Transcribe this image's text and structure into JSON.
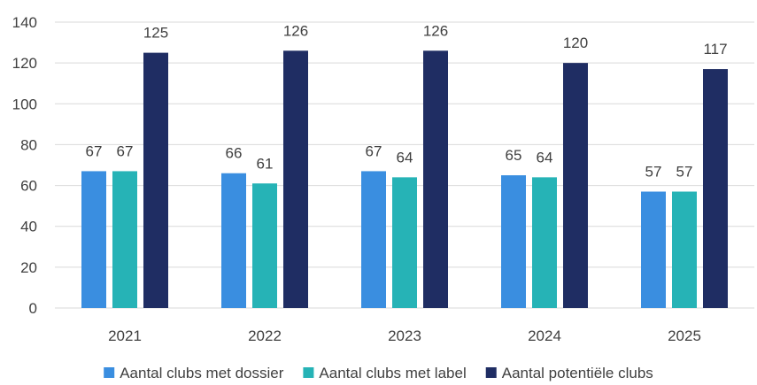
{
  "chart_data": {
    "type": "bar",
    "categories": [
      "2021",
      "2022",
      "2023",
      "2024",
      "2025"
    ],
    "series": [
      {
        "name": "Aantal clubs met dossier",
        "values": [
          67,
          66,
          67,
          65,
          57
        ],
        "color": "#3a8ee0"
      },
      {
        "name": "Aantal clubs met label",
        "values": [
          67,
          61,
          64,
          64,
          57
        ],
        "color": "#26b3b6"
      },
      {
        "name": "Aantal potentiële clubs",
        "values": [
          125,
          126,
          126,
          120,
          117
        ],
        "color": "#1f2d63"
      }
    ],
    "ylim": [
      0,
      140
    ],
    "yticks": [
      "0",
      "20",
      "40",
      "60",
      "80",
      "100",
      "120",
      "140"
    ],
    "grid": true,
    "legend_position": "bottom",
    "data_labels": true,
    "title": "",
    "xlabel": "",
    "ylabel": ""
  }
}
